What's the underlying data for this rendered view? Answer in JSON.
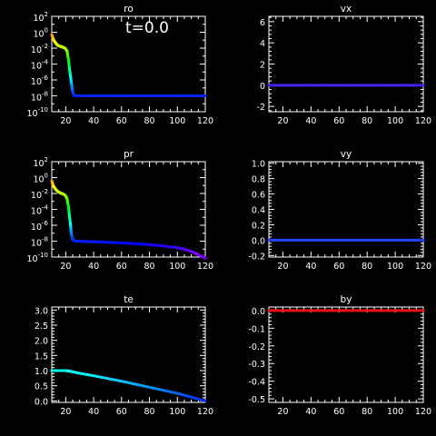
{
  "time_label": "t=0.0",
  "chart_data": [
    {
      "id": "ro",
      "type": "line",
      "title": "ro",
      "yscale": "log",
      "xlim": [
        10,
        120
      ],
      "ylim": [
        1e-10,
        100
      ],
      "xticks": [
        20,
        40,
        60,
        80,
        100,
        120
      ],
      "xtick_labels": [
        "20",
        "40",
        "60",
        "80",
        "100",
        "120"
      ],
      "yticks_log": [
        {
          "mant": "10",
          "exp": "2"
        },
        {
          "mant": "10",
          "exp": "0"
        },
        {
          "mant": "10",
          "exp": "-2"
        },
        {
          "mant": "10",
          "exp": "-4"
        },
        {
          "mant": "10",
          "exp": "-6"
        },
        {
          "mant": "10",
          "exp": "-8"
        },
        {
          "mant": "10",
          "exp": "-10"
        }
      ],
      "x": [
        10,
        11,
        12,
        13,
        14,
        15,
        16,
        17,
        18,
        19,
        20,
        21,
        22,
        23,
        24,
        25,
        26,
        30,
        40,
        60,
        80,
        100,
        120
      ],
      "y": [
        0.5,
        0.15,
        0.07,
        0.04,
        0.025,
        0.02,
        0.017,
        0.015,
        0.013,
        0.011,
        0.008,
        0.004,
        0.0003,
        1e-05,
        5e-07,
        3e-08,
        1e-08,
        1e-08,
        1e-08,
        1e-08,
        1e-08,
        1e-08,
        1e-08
      ],
      "colormap": "rainbow"
    },
    {
      "id": "vx",
      "type": "line",
      "title": "vx",
      "yscale": "linear",
      "xlim": [
        10,
        120
      ],
      "ylim": [
        -2.5,
        6.5
      ],
      "xticks": [
        20,
        40,
        60,
        80,
        100,
        120
      ],
      "xtick_labels": [
        "20",
        "40",
        "60",
        "80",
        "100",
        "120"
      ],
      "yticks": [
        -2,
        0,
        2,
        4,
        6
      ],
      "ytick_labels": [
        "-2",
        "0",
        "2",
        "4",
        "6"
      ],
      "x": [
        10,
        120
      ],
      "y": [
        0,
        0
      ],
      "color": "#4422ee"
    },
    {
      "id": "pr",
      "type": "line",
      "title": "pr",
      "yscale": "log",
      "xlim": [
        10,
        120
      ],
      "ylim": [
        1e-10,
        100
      ],
      "xticks": [
        20,
        40,
        60,
        80,
        100,
        120
      ],
      "xtick_labels": [
        "20",
        "40",
        "60",
        "80",
        "100",
        "120"
      ],
      "yticks_log": [
        {
          "mant": "10",
          "exp": "2"
        },
        {
          "mant": "10",
          "exp": "0"
        },
        {
          "mant": "10",
          "exp": "-2"
        },
        {
          "mant": "10",
          "exp": "-4"
        },
        {
          "mant": "10",
          "exp": "-6"
        },
        {
          "mant": "10",
          "exp": "-8"
        },
        {
          "mant": "10",
          "exp": "-10"
        }
      ],
      "x": [
        10,
        11,
        12,
        13,
        14,
        15,
        16,
        17,
        18,
        19,
        20,
        21,
        22,
        23,
        24,
        25,
        27,
        30,
        40,
        50,
        60,
        70,
        80,
        90,
        100,
        105,
        110,
        113,
        116,
        118,
        120
      ],
      "y": [
        0.4,
        0.1,
        0.05,
        0.03,
        0.02,
        0.015,
        0.012,
        0.01,
        0.009,
        0.007,
        0.005,
        0.002,
        0.0002,
        5e-06,
        1e-07,
        1.5e-08,
        1e-08,
        9.5e-09,
        8.5e-09,
        7.2e-09,
        6e-09,
        4.8e-09,
        3.6e-09,
        2.5e-09,
        1.5e-09,
        1e-09,
        5e-10,
        3e-10,
        1.6e-10,
        1.1e-10,
        8e-11
      ],
      "colormap": "rainbow"
    },
    {
      "id": "vy",
      "type": "line",
      "title": "vy",
      "yscale": "linear",
      "xlim": [
        10,
        120
      ],
      "ylim": [
        -0.22,
        1.02
      ],
      "xticks": [
        20,
        40,
        60,
        80,
        100,
        120
      ],
      "xtick_labels": [
        "20",
        "40",
        "60",
        "80",
        "100",
        "120"
      ],
      "yticks": [
        -0.2,
        0,
        0.2,
        0.4,
        0.6,
        0.8,
        1.0
      ],
      "ytick_labels": [
        "-0.2",
        "0.0",
        "0.2",
        "0.4",
        "0.6",
        "0.8",
        "1.0"
      ],
      "x": [
        10,
        120
      ],
      "y": [
        0,
        0
      ],
      "color": "#2244ff"
    },
    {
      "id": "te",
      "type": "line",
      "title": "te",
      "yscale": "linear",
      "xlim": [
        10,
        120
      ],
      "ylim": [
        -0.05,
        3.1
      ],
      "xticks": [
        20,
        40,
        60,
        80,
        100,
        120
      ],
      "xtick_labels": [
        "20",
        "40",
        "60",
        "80",
        "100",
        "120"
      ],
      "yticks": [
        0,
        0.5,
        1.0,
        1.5,
        2.0,
        2.5,
        3.0
      ],
      "ytick_labels": [
        "0.0",
        "0.5",
        "1.0",
        "1.5",
        "2.0",
        "2.5",
        "3.0"
      ],
      "x": [
        10,
        12,
        14,
        16,
        18,
        20,
        22,
        24,
        26,
        30,
        40,
        60,
        80,
        100,
        120
      ],
      "y": [
        1.0,
        1.0,
        1.0,
        1.0,
        1.0,
        1.0,
        0.99,
        0.97,
        0.95,
        0.91,
        0.83,
        0.65,
        0.45,
        0.25,
        0.0
      ],
      "colormap": "cyan-blue"
    },
    {
      "id": "by",
      "type": "line",
      "title": "by",
      "yscale": "linear",
      "xlim": [
        10,
        120
      ],
      "ylim": [
        -0.52,
        0.02
      ],
      "xticks": [
        20,
        40,
        60,
        80,
        100,
        120
      ],
      "xtick_labels": [
        "20",
        "40",
        "60",
        "80",
        "100",
        "120"
      ],
      "yticks": [
        -0.5,
        -0.4,
        -0.3,
        -0.2,
        -0.1,
        0.0
      ],
      "ytick_labels": [
        "-0.5",
        "-0.4",
        "-0.3",
        "-0.2",
        "-0.1",
        "0.0"
      ],
      "x": [
        10,
        120
      ],
      "y": [
        0,
        0
      ],
      "color": "#ee1111"
    }
  ]
}
